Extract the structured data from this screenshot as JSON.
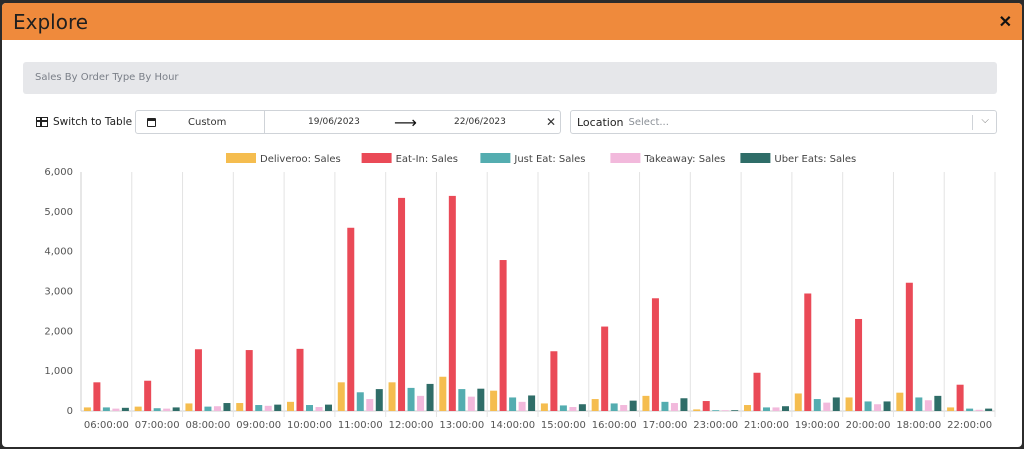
{
  "modal": {
    "title": "Explore",
    "close_icon": "close-icon"
  },
  "report": {
    "subtitle": "Sales By Order Type By Hour"
  },
  "controls": {
    "switch_label": "Switch to Table",
    "range_label": "Custom",
    "start_date": "19/06/2023",
    "end_date": "22/06/2023",
    "arrow": "⟶",
    "clear": "✕",
    "location_label": "Location",
    "location_placeholder": "Select..."
  },
  "chart_data": {
    "type": "bar",
    "categories": [
      "06:00:00",
      "07:00:00",
      "08:00:00",
      "09:00:00",
      "10:00:00",
      "11:00:00",
      "12:00:00",
      "13:00:00",
      "14:00:00",
      "15:00:00",
      "16:00:00",
      "17:00:00",
      "23:00:00",
      "21:00:00",
      "19:00:00",
      "20:00:00",
      "18:00:00",
      "22:00:00"
    ],
    "ylim": [
      0,
      6000
    ],
    "yticks": [
      "0",
      "1,000",
      "2,000",
      "3,000",
      "4,000",
      "5,000",
      "6,000"
    ],
    "legend_position": "top",
    "grid": "vertical",
    "series": [
      {
        "name": "Deliveroo: Sales",
        "color": "#f5bd4f",
        "values": [
          90,
          110,
          190,
          200,
          230,
          720,
          720,
          860,
          510,
          190,
          300,
          380,
          40,
          150,
          440,
          340,
          460,
          90
        ]
      },
      {
        "name": "Eat-In: Sales",
        "color": "#ea4a57",
        "values": [
          720,
          760,
          1550,
          1530,
          1560,
          4600,
          5350,
          5400,
          3790,
          1500,
          2120,
          2830,
          250,
          960,
          2950,
          2310,
          3220,
          660
        ]
      },
      {
        "name": "Just Eat: Sales",
        "color": "#54adb0",
        "values": [
          90,
          70,
          110,
          150,
          150,
          470,
          580,
          550,
          340,
          140,
          190,
          230,
          20,
          90,
          300,
          240,
          340,
          60
        ]
      },
      {
        "name": "Takeaway: Sales",
        "color": "#f2b9dc",
        "values": [
          60,
          60,
          120,
          130,
          100,
          300,
          380,
          360,
          230,
          100,
          150,
          200,
          20,
          90,
          210,
          170,
          270,
          30
        ]
      },
      {
        "name": "Uber Eats: Sales",
        "color": "#2f6d68",
        "values": [
          80,
          90,
          200,
          160,
          160,
          550,
          680,
          560,
          390,
          170,
          260,
          320,
          20,
          120,
          340,
          240,
          380,
          60
        ]
      }
    ]
  }
}
